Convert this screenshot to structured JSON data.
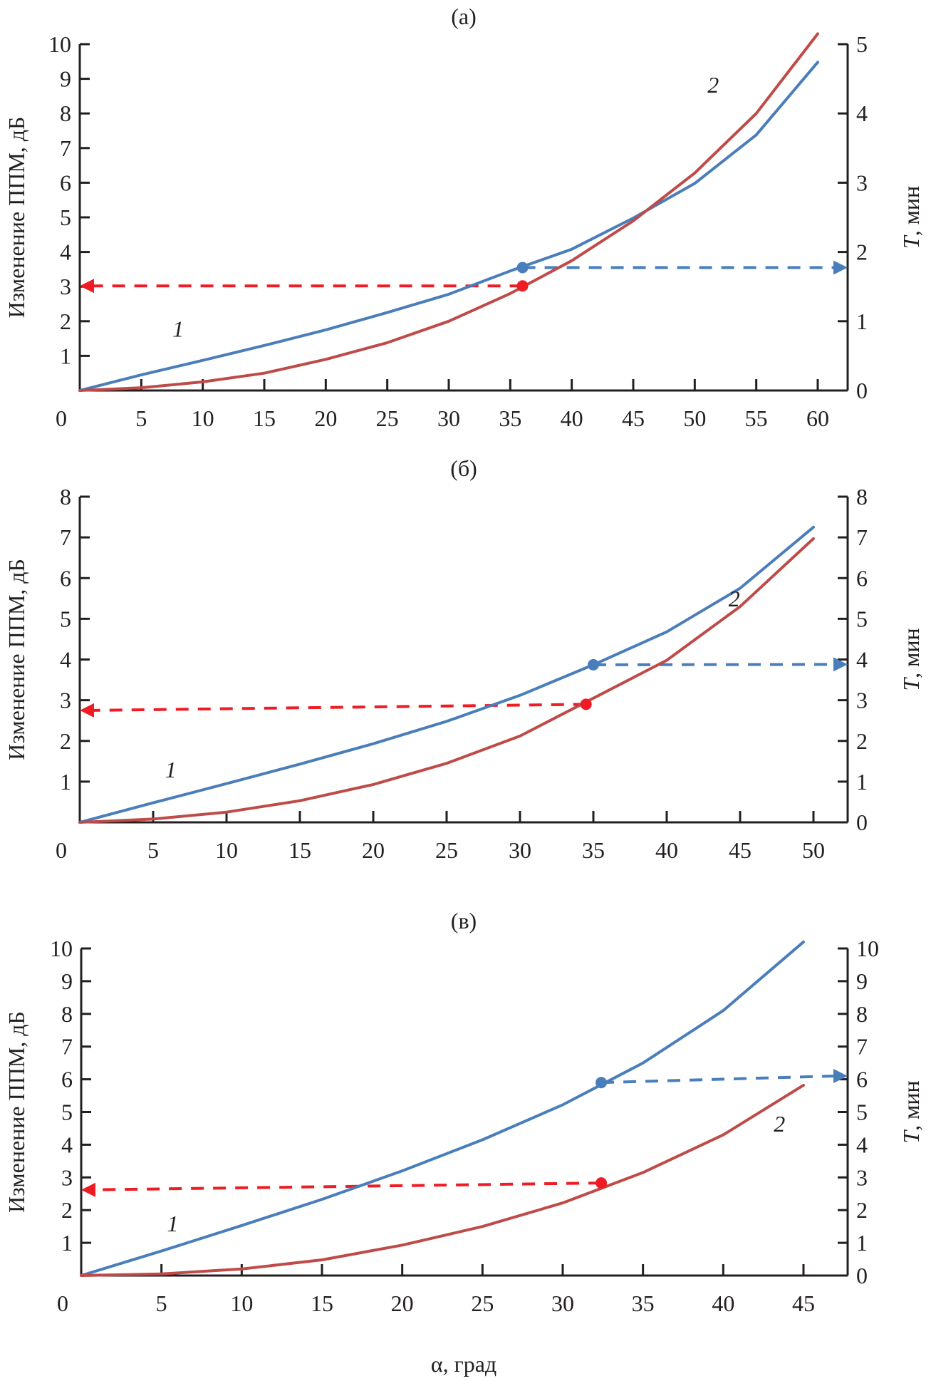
{
  "chart_data": [
    {
      "type": "line",
      "panel_label": "(а)",
      "title": "(а)",
      "xlabel": "",
      "ylabel_left": "Изменение ППМ, дБ",
      "ylabel_right": "T, мин",
      "ylabel_right_italic_part": "T",
      "ylabel_right_rest": ", мин",
      "x": [
        0,
        5,
        10,
        15,
        20,
        25,
        30,
        35,
        40,
        45,
        50,
        55,
        60
      ],
      "xlim": [
        0,
        62
      ],
      "x_ticks": [
        "0",
        "5",
        "10",
        "15",
        "20",
        "25",
        "30",
        "35",
        "40",
        "45",
        "50",
        "55",
        "60"
      ],
      "ylim_left": [
        0,
        10
      ],
      "ylim_right": [
        0,
        5
      ],
      "y_ticks_left": [
        "0",
        "1",
        "2",
        "3",
        "4",
        "5",
        "6",
        "7",
        "8",
        "9",
        "10"
      ],
      "y_ticks_right": [
        "0",
        "1",
        "2",
        "3",
        "4",
        "5"
      ],
      "series": [
        {
          "name": "1",
          "color": "#4a7ebb",
          "axis": "left",
          "values": [
            0,
            0.45,
            0.87,
            1.3,
            1.75,
            2.25,
            2.78,
            3.45,
            4.08,
            4.98,
            5.98,
            7.38,
            9.48
          ]
        },
        {
          "name": "2",
          "color": "#be4b48",
          "axis": "left",
          "values": [
            0,
            0.08,
            0.25,
            0.5,
            0.9,
            1.38,
            2.0,
            2.8,
            3.75,
            4.9,
            6.28,
            8.0,
            10.3
          ]
        }
      ],
      "curve_labels": [
        {
          "text": "1",
          "x": 8,
          "y": 1.55
        },
        {
          "text": "2",
          "x": 51.5,
          "y": 8.6
        }
      ],
      "markers": [
        {
          "series": "1",
          "x": 36,
          "y": 3.55,
          "color": "#4a7ebb",
          "arrow_to": "right",
          "arrow_end_y": 3.55
        },
        {
          "series": "2",
          "x": 36,
          "y": 3.02,
          "color": "#ee1c24",
          "arrow_to": "left",
          "arrow_end_y": 3.02
        }
      ],
      "grid": false
    },
    {
      "type": "line",
      "panel_label": "(б)",
      "title": "(б)",
      "xlabel": "",
      "ylabel_left": "Изменение ППМ, дБ",
      "ylabel_right": "T, мин",
      "ylabel_right_italic_part": "T",
      "ylabel_right_rest": ", мин",
      "x": [
        0,
        5,
        10,
        15,
        20,
        25,
        30,
        35,
        40,
        45,
        50
      ],
      "xlim": [
        0,
        52.5
      ],
      "x_ticks": [
        "0",
        "5",
        "10",
        "15",
        "20",
        "25",
        "30",
        "35",
        "40",
        "45",
        "50"
      ],
      "ylim_left": [
        0,
        8
      ],
      "ylim_right": [
        0,
        8
      ],
      "y_ticks_left": [
        "0",
        "1",
        "2",
        "3",
        "4",
        "5",
        "6",
        "7",
        "8"
      ],
      "y_ticks_right": [
        "0",
        "1",
        "2",
        "3",
        "4",
        "5",
        "6",
        "7",
        "8"
      ],
      "series": [
        {
          "name": "1",
          "color": "#4a7ebb",
          "axis": "left",
          "values": [
            0,
            0.48,
            0.95,
            1.43,
            1.93,
            2.48,
            3.12,
            3.87,
            4.68,
            5.75,
            7.25
          ]
        },
        {
          "name": "2",
          "color": "#be4b48",
          "axis": "left",
          "values": [
            0,
            0.08,
            0.25,
            0.53,
            0.93,
            1.45,
            2.12,
            3.05,
            3.98,
            5.3,
            6.97
          ]
        }
      ],
      "curve_labels": [
        {
          "text": "1",
          "x": 6.2,
          "y": 1.1
        },
        {
          "text": "2",
          "x": 44.6,
          "y": 5.3
        }
      ],
      "markers": [
        {
          "series": "1",
          "x": 35,
          "y": 3.87,
          "color": "#4a7ebb",
          "arrow_to": "right",
          "arrow_end_y": 3.88
        },
        {
          "series": "2",
          "x": 34.5,
          "y": 2.9,
          "color": "#ee1c24",
          "arrow_to": "left",
          "arrow_end_y": 2.75
        }
      ],
      "grid": false
    },
    {
      "type": "line",
      "panel_label": "(в)",
      "title": "(в)",
      "xlabel": "α, град",
      "ylabel_left": "Изменение ППМ, дБ",
      "ylabel_right": "T, мин",
      "ylabel_right_italic_part": "T",
      "ylabel_right_rest": ", мин",
      "x": [
        0,
        5,
        10,
        15,
        20,
        25,
        30,
        35,
        40,
        45
      ],
      "xlim": [
        0,
        47.5
      ],
      "x_ticks": [
        "0",
        "5",
        "10",
        "15",
        "20",
        "25",
        "30",
        "35",
        "40",
        "45"
      ],
      "ylim_left": [
        0,
        10
      ],
      "ylim_right": [
        0,
        10
      ],
      "y_ticks_left": [
        "0",
        "1",
        "2",
        "3",
        "4",
        "5",
        "6",
        "7",
        "8",
        "9",
        "10"
      ],
      "y_ticks_right": [
        "0",
        "1",
        "2",
        "3",
        "4",
        "5",
        "6",
        "7",
        "8",
        "9",
        "10"
      ],
      "series": [
        {
          "name": "1",
          "color": "#4a7ebb",
          "axis": "left",
          "values": [
            0,
            0.75,
            1.53,
            2.33,
            3.2,
            4.15,
            5.22,
            6.5,
            8.1,
            10.2
          ]
        },
        {
          "name": "2",
          "color": "#be4b48",
          "axis": "left",
          "values": [
            0,
            0.05,
            0.2,
            0.48,
            0.93,
            1.5,
            2.22,
            3.15,
            4.3,
            5.82
          ]
        }
      ],
      "curve_labels": [
        {
          "text": "1",
          "x": 5.7,
          "y": 1.35
        },
        {
          "text": "2",
          "x": 43.5,
          "y": 4.4
        }
      ],
      "markers": [
        {
          "series": "1",
          "x": 32.4,
          "y": 5.9,
          "color": "#4a7ebb",
          "arrow_to": "right",
          "arrow_end_y": 6.1
        },
        {
          "series": "2",
          "x": 32.4,
          "y": 2.83,
          "color": "#ee1c24",
          "arrow_to": "left",
          "arrow_end_y": 2.62
        }
      ],
      "grid": false
    }
  ]
}
